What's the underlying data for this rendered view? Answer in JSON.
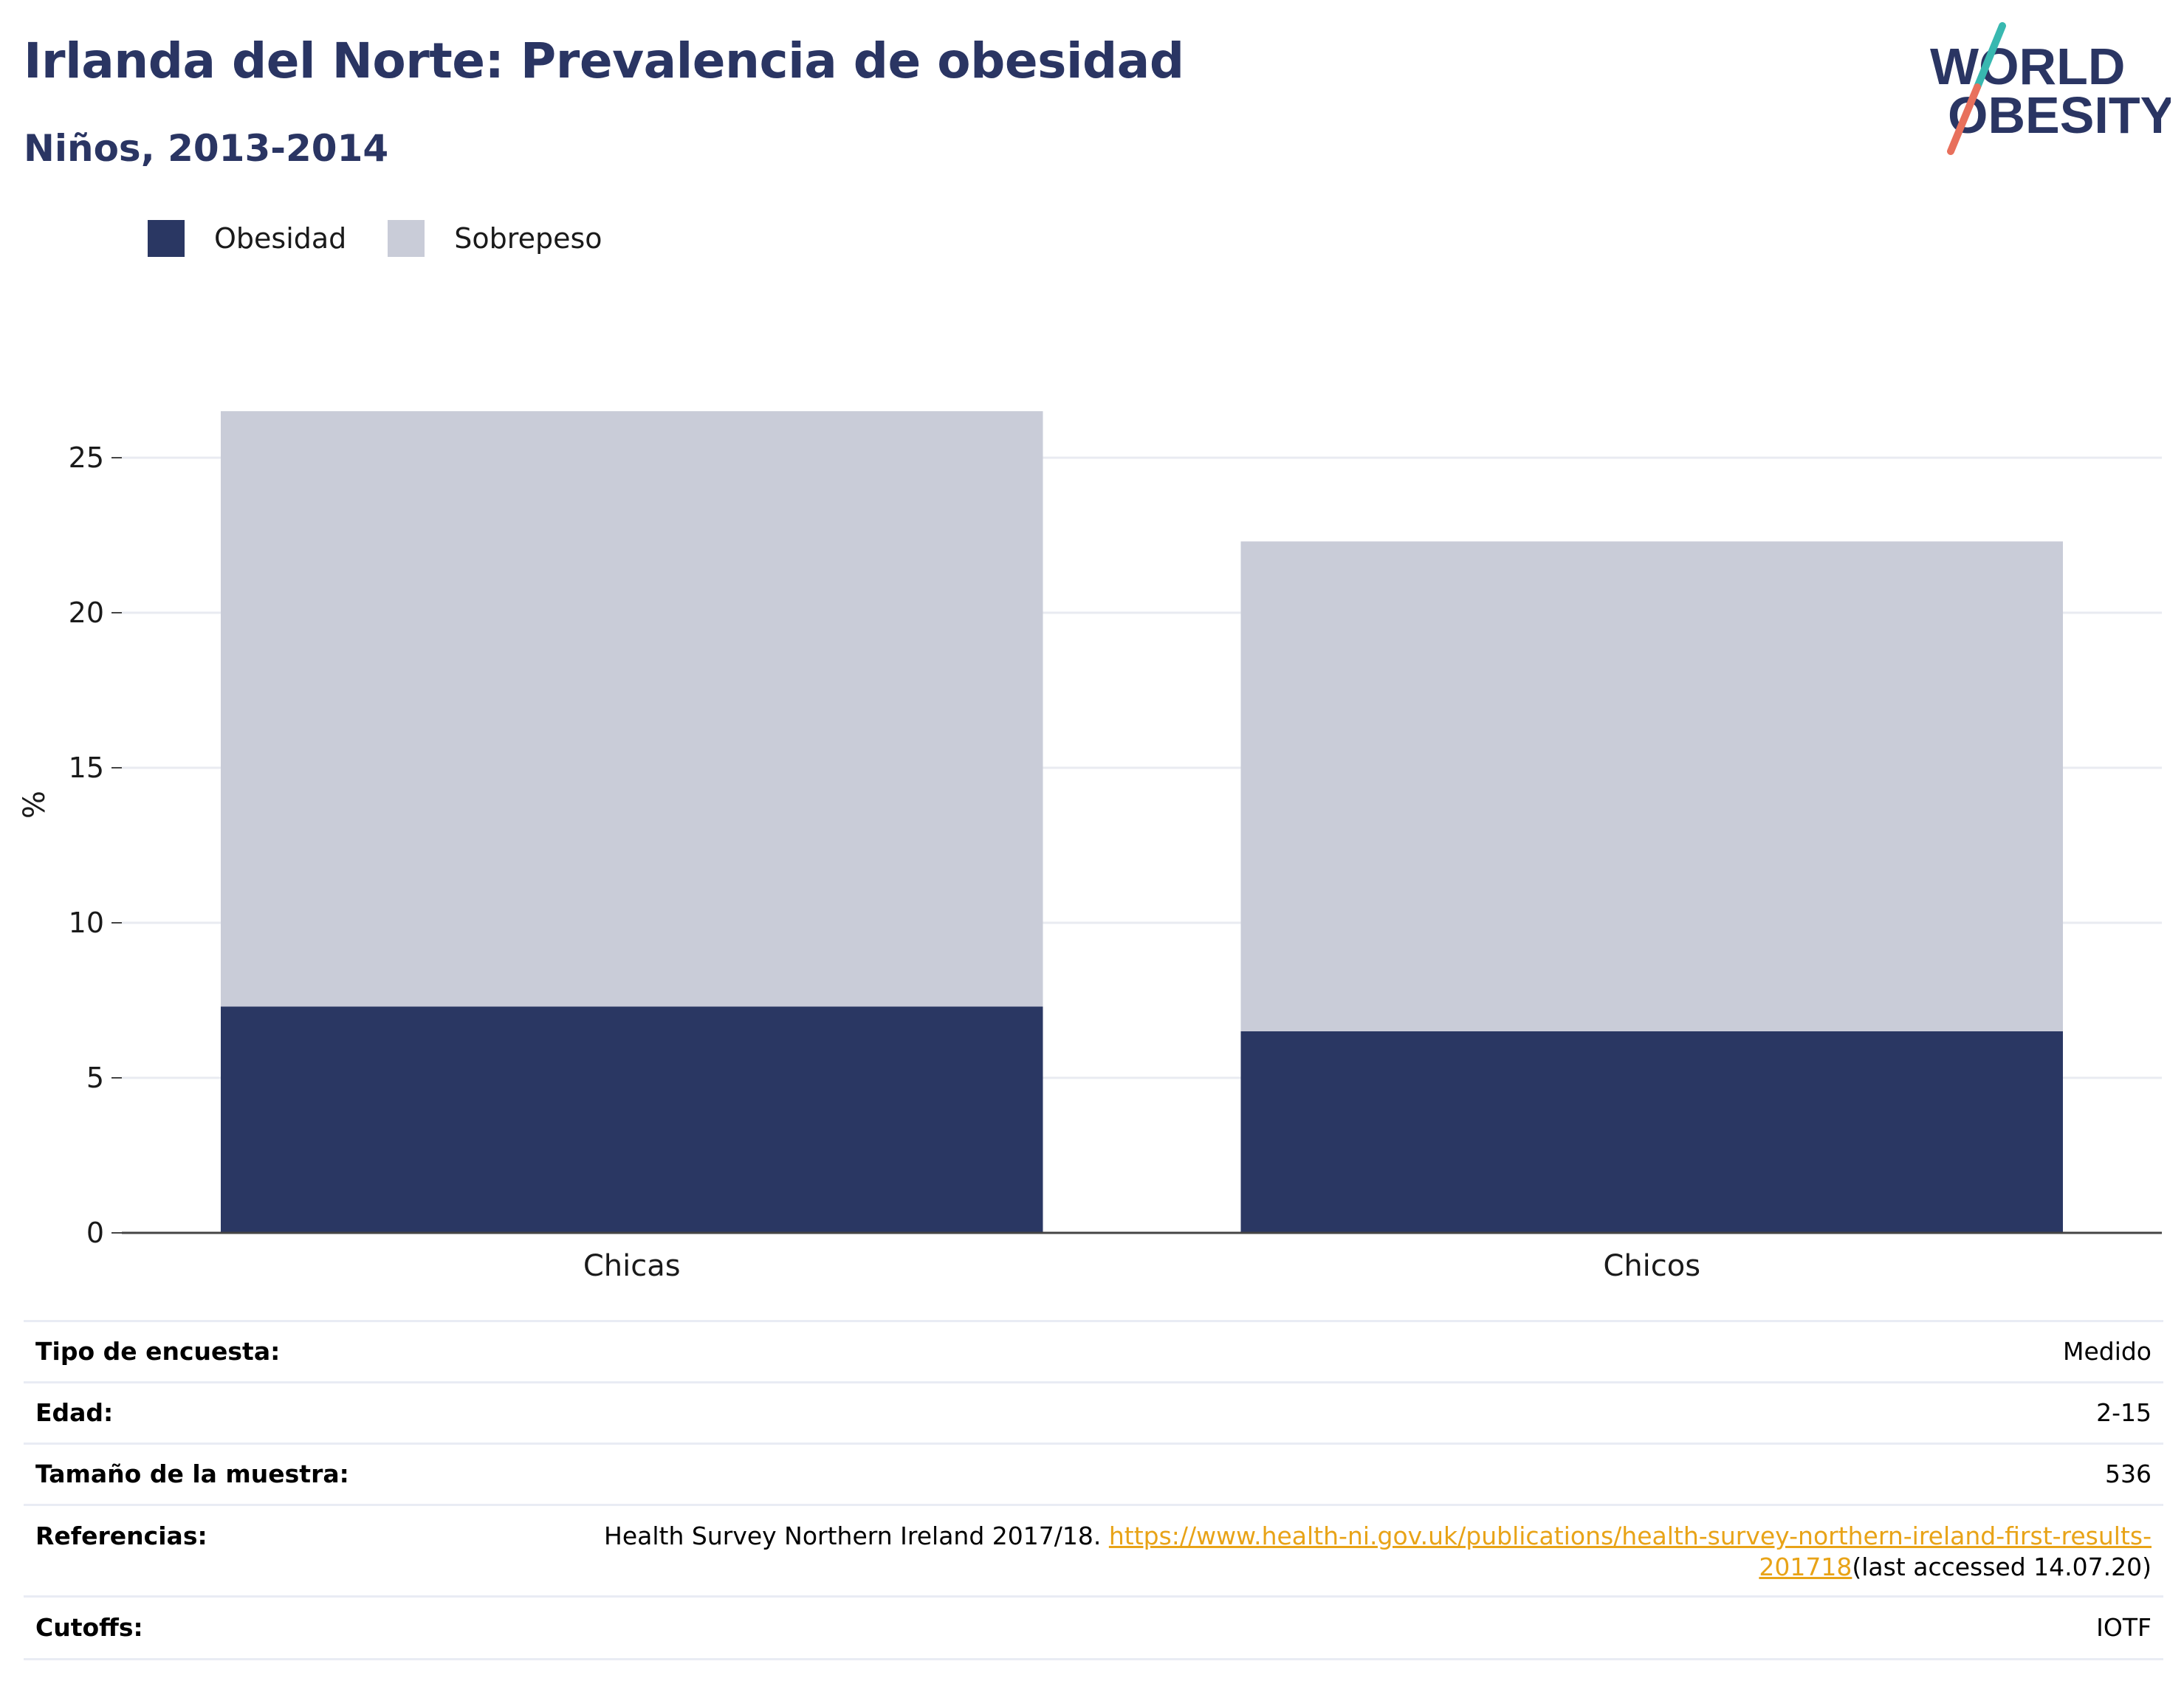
{
  "header": {
    "title": "Irlanda del Norte: Prevalencia de obesidad",
    "subtitle": "Niños, 2013-2014"
  },
  "logo": {
    "line1": "WORLD",
    "line2": "OBESITY"
  },
  "colors": {
    "obesity": "#2a3763",
    "overweight": "#c9ccd8",
    "title": "#2a3563",
    "grid": "#e9ebf1",
    "link": "#e8a317"
  },
  "legend": [
    {
      "label": "Obesidad",
      "color": "#2a3763"
    },
    {
      "label": "Sobrepeso",
      "color": "#c9ccd8"
    }
  ],
  "chart_data": {
    "type": "bar",
    "stacked": true,
    "categories": [
      "Chicas",
      "Chicos"
    ],
    "series": [
      {
        "name": "Obesidad",
        "values": [
          7.3,
          6.5
        ]
      },
      {
        "name": "Sobrepeso",
        "values": [
          19.2,
          15.8
        ]
      }
    ],
    "ylabel": "%",
    "ylim": [
      0,
      27.5
    ],
    "yticks": [
      0,
      5,
      10,
      15,
      20,
      25
    ],
    "grid": true,
    "legend_position": "top-left"
  },
  "info": [
    {
      "key": "Tipo de encuesta:",
      "value": "Medido"
    },
    {
      "key": "Edad:",
      "value": "2-15"
    },
    {
      "key": "Tamaño de la muestra:",
      "value": "536"
    },
    {
      "key": "Referencias:",
      "value_prefix": "Health Survey Northern Ireland 2017/18.",
      "link_line1": "https://www.health-ni.gov.uk/publications/health-survey-northern-ireland-first-results-",
      "link_line2": "201718",
      "value_suffix": "(last accessed 14.07.20)"
    },
    {
      "key": "Cutoffs:",
      "value": "IOTF"
    }
  ]
}
